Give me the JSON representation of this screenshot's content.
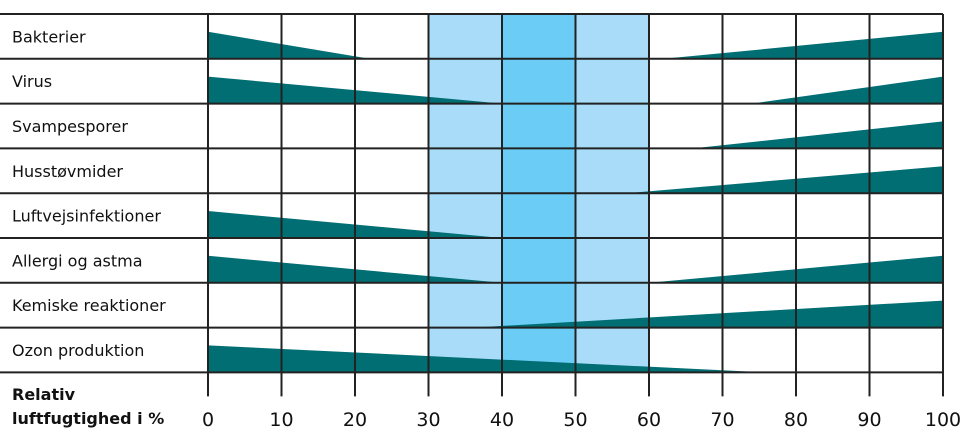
{
  "chart_data": {
    "type": "area",
    "xlabel_lines": [
      "Relativ",
      "luftfugtighed i %"
    ],
    "x_ticks": [
      0,
      10,
      20,
      30,
      40,
      50,
      60,
      70,
      80,
      90,
      100
    ],
    "xlim": [
      0,
      100
    ],
    "rows": [
      {
        "label": "Bakterier",
        "low_zero_at": 22,
        "high_start": 62
      },
      {
        "label": "Virus",
        "low_zero_at": 40,
        "high_start": 74
      },
      {
        "label": "Svampesporer",
        "low_zero_at": null,
        "high_start": 66
      },
      {
        "label": "Husstøvmider",
        "low_zero_at": null,
        "high_start": 57
      },
      {
        "label": "Luftvejsinfektioner",
        "low_zero_at": 40,
        "high_start": null
      },
      {
        "label": "Allergi og astma",
        "low_zero_at": 40,
        "high_start": 60
      },
      {
        "label": "Kemiske reaktioner",
        "low_zero_at": null,
        "high_start": 36
      },
      {
        "label": "Ozon produktion",
        "low_zero_at": 76,
        "high_start": null
      }
    ],
    "optimal_zones": [
      {
        "range": [
          30,
          60
        ],
        "color": "#a9dcf8"
      },
      {
        "range": [
          40,
          50
        ],
        "color": "#6bcdf5"
      }
    ],
    "fill_color": "#006e73",
    "grid": true
  }
}
